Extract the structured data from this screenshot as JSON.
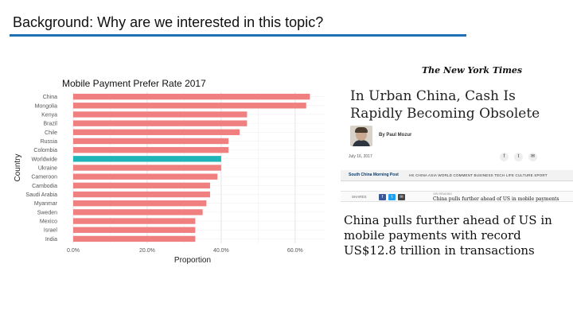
{
  "slide": {
    "title": "Background: Why are we interested in this topic?",
    "accent_color": "#1e6fb5"
  },
  "chart": {
    "title": "Mobile Payment Prefer Rate 2017"
  },
  "chart_data": {
    "type": "bar",
    "orientation": "horizontal",
    "title": "Mobile Payment Prefer Rate 2017",
    "xlabel": "Proportion",
    "ylabel": "Country",
    "categories": [
      "China",
      "Mongolia",
      "Kenya",
      "Brazil",
      "Chile",
      "Russia",
      "Colombia",
      "Worldwide",
      "Ukraine",
      "Cameroon",
      "Cambodia",
      "Saudi Arabia",
      "Myanmar",
      "Sweden",
      "Mexico",
      "Israel",
      "India"
    ],
    "values": [
      0.64,
      0.63,
      0.47,
      0.47,
      0.45,
      0.42,
      0.42,
      0.4,
      0.4,
      0.39,
      0.37,
      0.37,
      0.36,
      0.35,
      0.33,
      0.33,
      0.33
    ],
    "highlight": "Worldwide",
    "bar_color": "#f08080",
    "highlight_color": "#1fb5b8",
    "xlim": [
      0,
      0.68
    ],
    "xticks": [
      0,
      0.2,
      0.4,
      0.6
    ],
    "xtick_labels": [
      "0.0%",
      "20.0%",
      "40.0%",
      "60.0%"
    ],
    "grid": true,
    "legend": "none"
  },
  "nyt": {
    "masthead": "The New York Times",
    "headline": "In Urban China, Cash Is Rapidly Becoming Obsolete",
    "byline": "By Paul Mozur",
    "date": "July 16, 2017",
    "share_icons": [
      "facebook-icon",
      "twitter-icon",
      "email-icon"
    ]
  },
  "scmp": {
    "logo": "South China Morning Post",
    "nav": "HK   CHINA   ASIA   WORLD   COMMENT   BUSINESS   TECH   LIFE   CULTURE   SPORT",
    "shares": "SHARES",
    "mini_label": "10% READING",
    "mini_headline": "China pulls further ahead of US in mobile payments",
    "headline": "China pulls further ahead of US in mobile payments with record US$12.8 trillion in transactions",
    "share_buttons": [
      {
        "icon": "facebook-icon",
        "glyph": "f",
        "color": "#3b5998"
      },
      {
        "icon": "twitter-icon",
        "glyph": "t",
        "color": "#1da1f2"
      },
      {
        "icon": "email-icon",
        "glyph": "✉",
        "color": "#444444"
      }
    ]
  }
}
